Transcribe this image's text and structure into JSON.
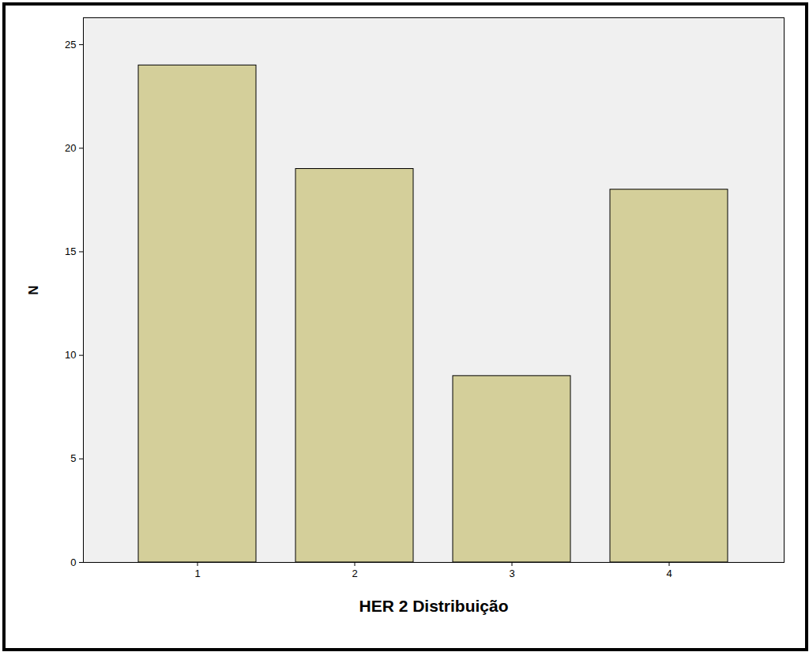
{
  "chart_data": {
    "type": "bar",
    "x_label": "HER 2 Distribuição",
    "y_label": "N",
    "categories": [
      "1",
      "2",
      "3",
      "4"
    ],
    "values": [
      24,
      19,
      9,
      18
    ],
    "color": "#d4cf9a",
    "ylim": [
      0,
      26.3
    ],
    "yticks": [
      0,
      5,
      10,
      15,
      20,
      25
    ],
    "grid": false
  }
}
